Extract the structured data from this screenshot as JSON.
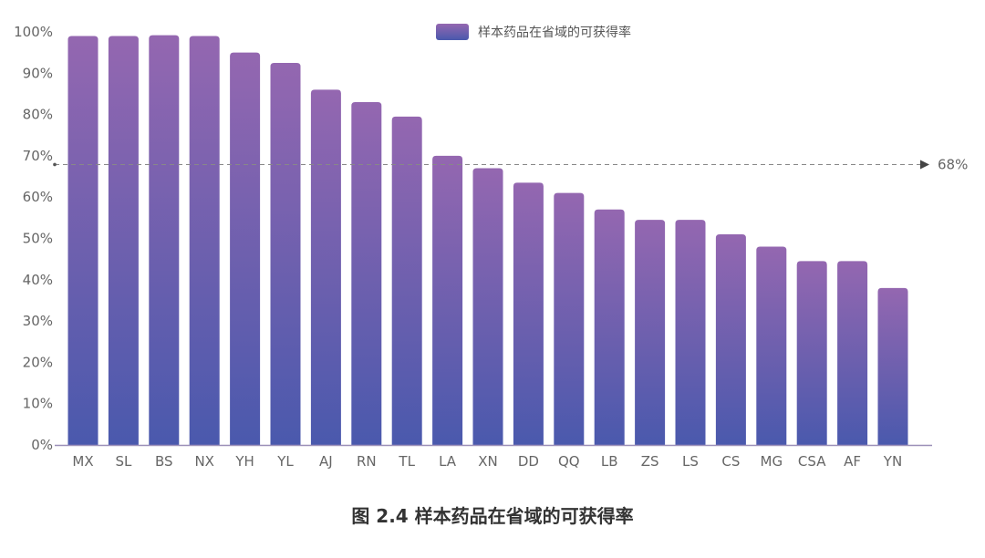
{
  "chart_data": {
    "type": "bar",
    "title": "图 2.4 样本药品在省域的可获得率",
    "xlabel": "",
    "ylabel": "",
    "ylim": [
      0,
      100
    ],
    "yticks": [
      "0%",
      "10%",
      "20%",
      "30%",
      "40%",
      "50%",
      "60%",
      "70%",
      "80%",
      "90%",
      "100%"
    ],
    "categories": [
      "MX",
      "SL",
      "BS",
      "NX",
      "YH",
      "YL",
      "AJ",
      "RN",
      "TL",
      "LA",
      "XN",
      "DD",
      "QQ",
      "LB",
      "ZS",
      "LS",
      "CS",
      "MG",
      "CSA",
      "AF",
      "YN"
    ],
    "series": [
      {
        "name": "样本药品在省域的可获得率",
        "values": [
          99,
          99,
          99.2,
          99,
          95,
          92.5,
          86,
          83,
          79.5,
          70,
          67,
          63.5,
          61,
          57,
          54.5,
          54.5,
          51,
          48,
          44.5,
          44.5,
          38
        ]
      }
    ],
    "reference_line": {
      "value": 68,
      "label": "68%"
    },
    "legend_position": "top-center",
    "colors": {
      "bar_top": "#9467b0",
      "bar_bottom": "#4a59ad",
      "axis": "#9b8fb8",
      "ref_line": "#888888"
    }
  }
}
